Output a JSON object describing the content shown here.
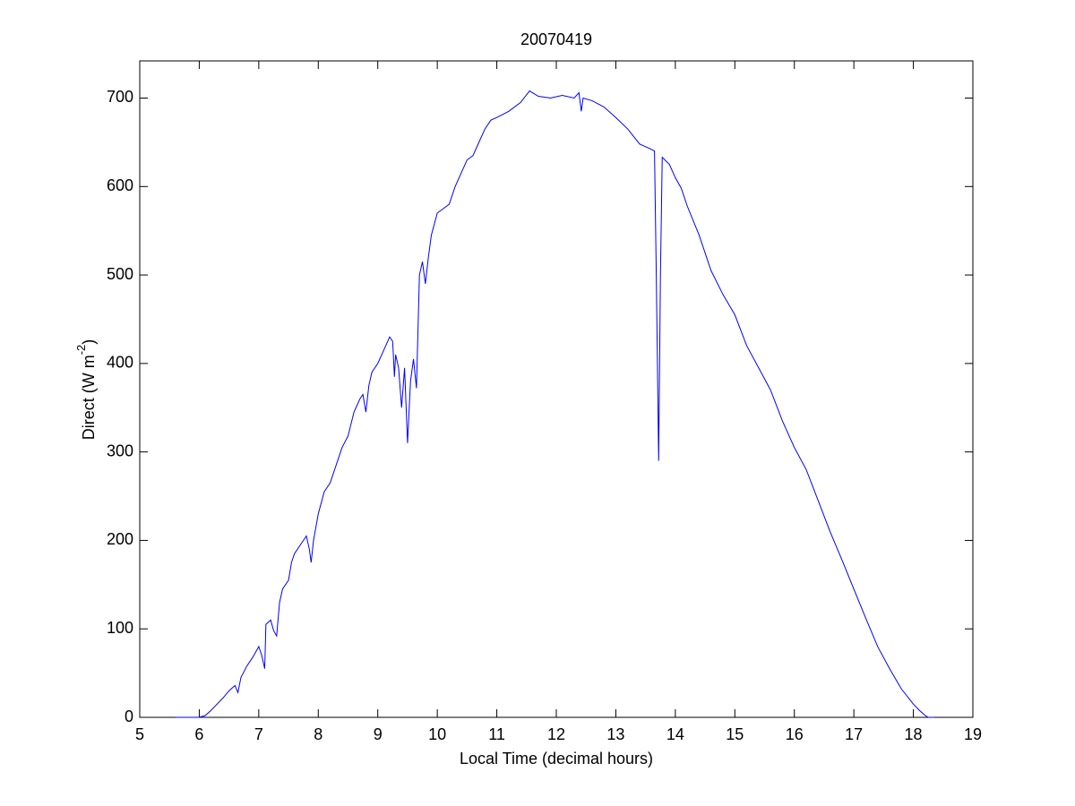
{
  "chart_data": {
    "type": "line",
    "title": "20070419",
    "xlabel": "Local Time (decimal hours)",
    "ylabel": {
      "text": "Direct (W m",
      "superscript": "-2",
      "suffix": ")"
    },
    "xlim": [
      5,
      19
    ],
    "xticks": [
      5,
      6,
      7,
      8,
      9,
      10,
      11,
      12,
      13,
      14,
      15,
      16,
      17,
      18,
      19
    ],
    "ylim": [
      0,
      742
    ],
    "yticks": [
      0,
      100,
      200,
      300,
      400,
      500,
      600,
      700
    ],
    "grid": false,
    "series": [
      {
        "color": "#0000ff",
        "x": [
          5.6,
          5.8,
          6.0,
          6.1,
          6.2,
          6.3,
          6.4,
          6.5,
          6.6,
          6.65,
          6.7,
          6.8,
          6.9,
          7.0,
          7.05,
          7.1,
          7.12,
          7.2,
          7.25,
          7.3,
          7.35,
          7.4,
          7.5,
          7.55,
          7.6,
          7.7,
          7.8,
          7.85,
          7.88,
          7.92,
          8.0,
          8.1,
          8.2,
          8.3,
          8.4,
          8.5,
          8.6,
          8.7,
          8.75,
          8.8,
          8.85,
          8.9,
          9.0,
          9.1,
          9.2,
          9.25,
          9.28,
          9.3,
          9.35,
          9.4,
          9.45,
          9.5,
          9.55,
          9.6,
          9.65,
          9.7,
          9.75,
          9.8,
          9.85,
          9.9,
          10.0,
          10.1,
          10.2,
          10.3,
          10.4,
          10.5,
          10.6,
          10.7,
          10.8,
          10.9,
          11.0,
          11.2,
          11.4,
          11.55,
          11.7,
          11.9,
          12.1,
          12.3,
          12.38,
          12.42,
          12.45,
          12.6,
          12.8,
          13.0,
          13.2,
          13.4,
          13.6,
          13.65,
          13.68,
          13.72,
          13.75,
          13.78,
          13.9,
          14.0,
          14.1,
          14.2,
          14.4,
          14.6,
          14.8,
          15.0,
          15.2,
          15.4,
          15.6,
          15.8,
          16.0,
          16.2,
          16.4,
          16.6,
          16.8,
          17.0,
          17.2,
          17.4,
          17.6,
          17.8,
          18.0,
          18.1,
          18.2,
          18.25,
          18.35
        ],
        "values": [
          0,
          0,
          0,
          2,
          8,
          15,
          22,
          30,
          36,
          28,
          45,
          58,
          68,
          80,
          70,
          55,
          105,
          110,
          98,
          92,
          130,
          145,
          155,
          175,
          185,
          195,
          205,
          190,
          175,
          200,
          230,
          255,
          265,
          285,
          305,
          318,
          345,
          360,
          365,
          345,
          375,
          390,
          400,
          415,
          430,
          425,
          385,
          410,
          395,
          350,
          395,
          310,
          380,
          405,
          372,
          500,
          515,
          490,
          520,
          545,
          570,
          575,
          580,
          600,
          615,
          630,
          635,
          650,
          665,
          675,
          678,
          685,
          695,
          708,
          702,
          700,
          703,
          700,
          706,
          685,
          700,
          697,
          690,
          678,
          665,
          648,
          642,
          640,
          500,
          290,
          500,
          633,
          625,
          610,
          598,
          578,
          545,
          505,
          478,
          455,
          420,
          395,
          370,
          335,
          305,
          280,
          245,
          210,
          178,
          145,
          112,
          80,
          55,
          32,
          15,
          8,
          2,
          0,
          0
        ]
      }
    ]
  }
}
